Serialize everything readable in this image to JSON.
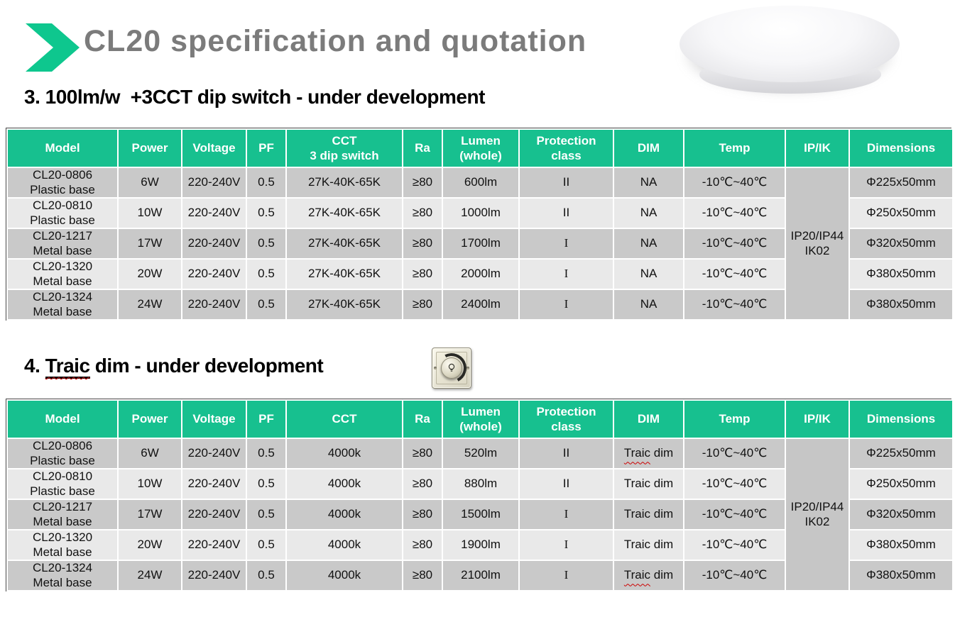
{
  "header": {
    "title": "CL20 specification and quotation"
  },
  "sections": {
    "section3": {
      "label": "3. 100lm/w  +3CCT dip switch - under development"
    },
    "section4": {
      "prefix": "4. ",
      "word": "Traic",
      "rest": " dim - under development"
    }
  },
  "colors": {
    "accent_green": "#0EC78E",
    "table_header_green": "#17C08F",
    "row_dark": "#C9C9C9",
    "row_light": "#E9E9E9",
    "merged_cell_gray": "#C6C6C6",
    "title_gray": "#7B7B7B",
    "squiggle_red": "#CC0000"
  },
  "icons": {
    "chevron": "right-chevron-icon",
    "lamp": "ceiling-lamp-photo",
    "dimmer": "rotary-dimmer-switch-photo"
  },
  "tables": [
    {
      "name": "cct-dip-switch-spec-table",
      "columns": [
        {
          "key": "model",
          "label": "Model",
          "width": 156
        },
        {
          "key": "power",
          "label": "Power",
          "width": 90
        },
        {
          "key": "voltage",
          "label": "Voltage",
          "width": 91
        },
        {
          "key": "pf",
          "label": "PF",
          "width": 56
        },
        {
          "key": "cct",
          "label": "CCT\n3 dip switch",
          "width": 164
        },
        {
          "key": "ra",
          "label": "Ra",
          "width": 56
        },
        {
          "key": "lumen",
          "label": "Lumen\n(whole)",
          "width": 108
        },
        {
          "key": "protection",
          "label": "Protection\nclass",
          "width": 133
        },
        {
          "key": "dim",
          "label": "DIM",
          "width": 99
        },
        {
          "key": "temp",
          "label": "Temp",
          "width": 143
        },
        {
          "key": "ipik",
          "label": "IP/IK",
          "width": 90
        },
        {
          "key": "dimensions",
          "label": "Dimensions",
          "width": 146
        }
      ],
      "ip_merged": "IP20/IP44\nIK02",
      "rows": [
        {
          "model": "CL20-0806",
          "base": "Plastic base",
          "power": "6W",
          "voltage": "220-240V",
          "pf": "0.5",
          "cct": "27K-40K-65K",
          "ra": "≥80",
          "lumen": "600lm",
          "protection": "II",
          "protection_serif": false,
          "dim_word": "NA",
          "dim_rest": "",
          "dim_misspelled": false,
          "temp": "-10℃~40℃",
          "dimensions": "Φ225x50mm"
        },
        {
          "model": "CL20-0810",
          "base": "Plastic base",
          "power": "10W",
          "voltage": "220-240V",
          "pf": "0.5",
          "cct": "27K-40K-65K",
          "ra": "≥80",
          "lumen": "1000lm",
          "protection": "II",
          "protection_serif": false,
          "dim_word": "NA",
          "dim_rest": "",
          "dim_misspelled": false,
          "temp": "-10℃~40℃",
          "dimensions": "Φ250x50mm"
        },
        {
          "model": "CL20-1217",
          "base": "Metal base",
          "power": "17W",
          "voltage": "220-240V",
          "pf": "0.5",
          "cct": "27K-40K-65K",
          "ra": "≥80",
          "lumen": "1700lm",
          "protection": "I",
          "protection_serif": true,
          "dim_word": "NA",
          "dim_rest": "",
          "dim_misspelled": false,
          "temp": "-10℃~40℃",
          "dimensions": "Φ320x50mm"
        },
        {
          "model": "CL20-1320",
          "base": "Metal base",
          "power": "20W",
          "voltage": "220-240V",
          "pf": "0.5",
          "cct": "27K-40K-65K",
          "ra": "≥80",
          "lumen": "2000lm",
          "protection": "I",
          "protection_serif": true,
          "dim_word": "NA",
          "dim_rest": "",
          "dim_misspelled": false,
          "temp": "-10℃~40℃",
          "dimensions": "Φ380x50mm"
        },
        {
          "model": "CL20-1324",
          "base": "Metal base",
          "power": "24W",
          "voltage": "220-240V",
          "pf": "0.5",
          "cct": "27K-40K-65K",
          "ra": "≥80",
          "lumen": "2400lm",
          "protection": "I",
          "protection_serif": true,
          "dim_word": "NA",
          "dim_rest": "",
          "dim_misspelled": false,
          "temp": "-10℃~40℃",
          "dimensions": "Φ380x50mm"
        }
      ]
    },
    {
      "name": "traic-dim-spec-table",
      "columns": [
        {
          "key": "model",
          "label": "Model",
          "width": 156
        },
        {
          "key": "power",
          "label": "Power",
          "width": 90
        },
        {
          "key": "voltage",
          "label": "Voltage",
          "width": 91
        },
        {
          "key": "pf",
          "label": "PF",
          "width": 56
        },
        {
          "key": "cct",
          "label": "CCT",
          "width": 164
        },
        {
          "key": "ra",
          "label": "Ra",
          "width": 56
        },
        {
          "key": "lumen",
          "label": "Lumen\n(whole)",
          "width": 108
        },
        {
          "key": "protection",
          "label": "Protection\nclass",
          "width": 133
        },
        {
          "key": "dim",
          "label": "DIM",
          "width": 99
        },
        {
          "key": "temp",
          "label": "Temp",
          "width": 143
        },
        {
          "key": "ipik",
          "label": "IP/IK",
          "width": 90
        },
        {
          "key": "dimensions",
          "label": "Dimensions",
          "width": 146
        }
      ],
      "ip_merged": "IP20/IP44\nIK02",
      "rows": [
        {
          "model": "CL20-0806",
          "base": "Plastic base",
          "power": "6W",
          "voltage": "220-240V",
          "pf": "0.5",
          "cct": "4000k",
          "ra": "≥80",
          "lumen": "520lm",
          "protection": "II",
          "protection_serif": false,
          "dim_word": "Traic",
          "dim_rest": " dim",
          "dim_misspelled": true,
          "temp": "-10℃~40℃",
          "dimensions": "Φ225x50mm"
        },
        {
          "model": "CL20-0810",
          "base": "Plastic base",
          "power": "10W",
          "voltage": "220-240V",
          "pf": "0.5",
          "cct": "4000k",
          "ra": "≥80",
          "lumen": "880lm",
          "protection": "II",
          "protection_serif": false,
          "dim_word": "Traic",
          "dim_rest": " dim",
          "dim_misspelled": false,
          "temp": "-10℃~40℃",
          "dimensions": "Φ250x50mm"
        },
        {
          "model": "CL20-1217",
          "base": "Metal base",
          "power": "17W",
          "voltage": "220-240V",
          "pf": "0.5",
          "cct": "4000k",
          "ra": "≥80",
          "lumen": "1500lm",
          "protection": "I",
          "protection_serif": true,
          "dim_word": "Traic",
          "dim_rest": " dim",
          "dim_misspelled": false,
          "temp": "-10℃~40℃",
          "dimensions": "Φ320x50mm"
        },
        {
          "model": "CL20-1320",
          "base": "Metal base",
          "power": "20W",
          "voltage": "220-240V",
          "pf": "0.5",
          "cct": "4000k",
          "ra": "≥80",
          "lumen": "1900lm",
          "protection": "I",
          "protection_serif": true,
          "dim_word": "Traic",
          "dim_rest": " dim",
          "dim_misspelled": false,
          "temp": "-10℃~40℃",
          "dimensions": "Φ380x50mm"
        },
        {
          "model": "CL20-1324",
          "base": "Metal base",
          "power": "24W",
          "voltage": "220-240V",
          "pf": "0.5",
          "cct": "4000k",
          "ra": "≥80",
          "lumen": "2100lm",
          "protection": "I",
          "protection_serif": true,
          "dim_word": "Traic",
          "dim_rest": " dim",
          "dim_misspelled": true,
          "temp": "-10℃~40℃",
          "dimensions": "Φ380x50mm"
        }
      ]
    }
  ]
}
